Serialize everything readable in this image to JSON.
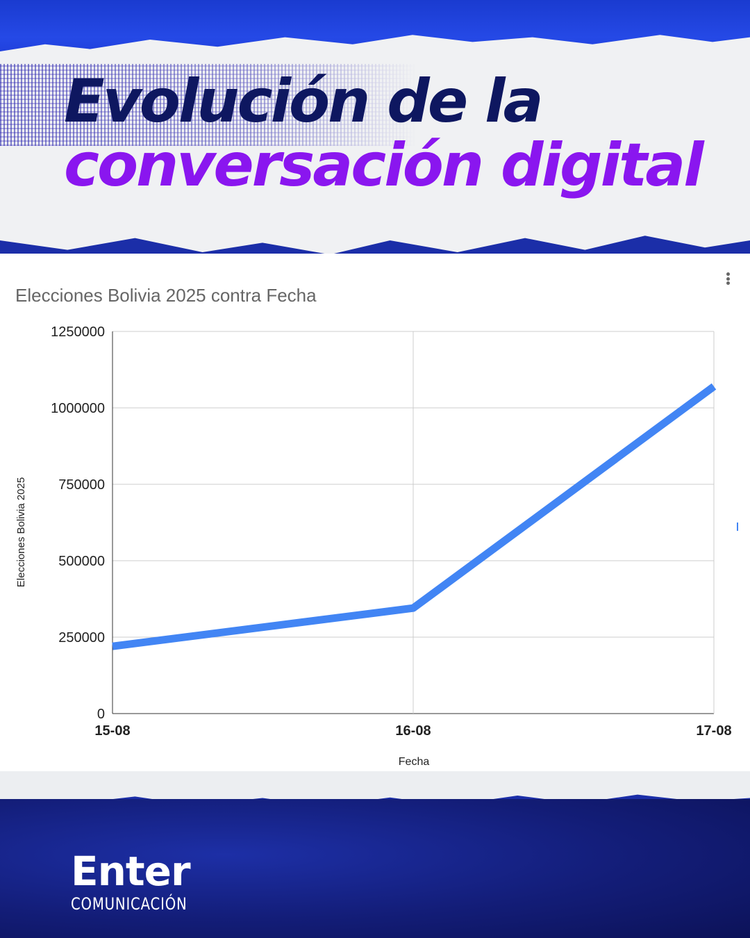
{
  "header": {
    "title_line1": "Evolución de la",
    "title_line2": "conversación digital"
  },
  "colors": {
    "title_dark": "#0e1760",
    "title_accent": "#8a16ef",
    "line": "#4285f4",
    "brand_blue": "#1b2ea8"
  },
  "chart_menu_icon": "kebab-menu-icon",
  "chart_data": {
    "type": "line",
    "title": "Elecciones Bolivia 2025 contra Fecha",
    "xlabel": "Fecha",
    "ylabel": "Elecciones Bolivia 2025",
    "categories": [
      "15-08",
      "16-08",
      "17-08"
    ],
    "series": [
      {
        "values": [
          220000,
          345000,
          1070000
        ]
      }
    ],
    "ylim": [
      0,
      1250000
    ],
    "yticks": [
      0,
      250000,
      500000,
      750000,
      1000000,
      1250000
    ],
    "grid": true,
    "legend": "none"
  },
  "footer": {
    "logo_main": "Enter",
    "logo_sub": "COMUNICACIÓN"
  }
}
